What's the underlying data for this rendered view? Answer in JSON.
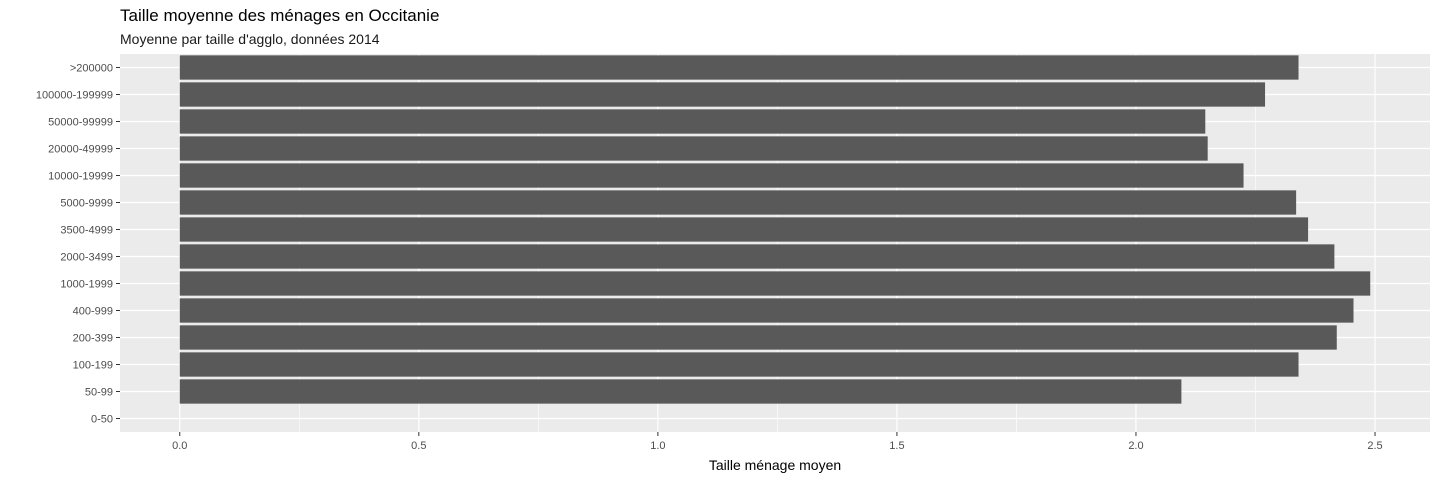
{
  "chart_data": {
    "type": "bar",
    "orientation": "horizontal",
    "title": "Taille moyenne des ménages en Occitanie",
    "subtitle": "Moyenne par taille d'agglo, données 2014",
    "xlabel": "Taille ménage moyen",
    "ylabel": "",
    "categories": [
      ">200000",
      "100000-199999",
      "50000-99999",
      "20000-49999",
      "10000-19999",
      "5000-9999",
      "3500-4999",
      "2000-3499",
      "1000-1999",
      "400-999",
      "200-399",
      "100-199",
      "50-99",
      "0-50"
    ],
    "values": [
      2.34,
      2.27,
      2.145,
      2.15,
      2.225,
      2.335,
      2.36,
      2.415,
      2.49,
      2.455,
      2.42,
      2.34,
      2.095,
      0
    ],
    "xlim": [
      -0.125,
      2.615
    ],
    "xticks": [
      "0.0",
      "0.5",
      "1.0",
      "1.5",
      "2.0",
      "2.5"
    ],
    "grid": true,
    "colors": {
      "panel": "#ebebeb",
      "bar": "#595959",
      "grid": "#ffffff"
    }
  }
}
